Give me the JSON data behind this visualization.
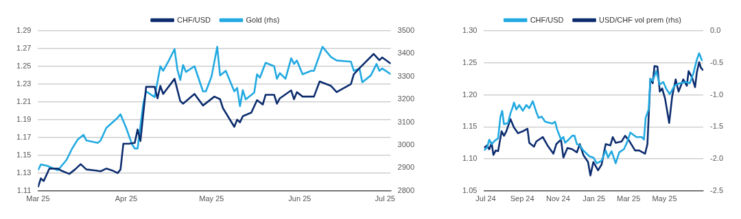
{
  "chart_data": [
    {
      "type": "line",
      "legend": "top",
      "grid": "y",
      "marker": "none",
      "line_style": "solid",
      "xlim": [
        "2025-03-01",
        "2025-07-03"
      ],
      "xticks": [
        {
          "value": "2025-03-01",
          "label": "Mar 25"
        },
        {
          "value": "2025-04-01",
          "label": "Apr 25"
        },
        {
          "value": "2025-05-01",
          "label": "May 25"
        },
        {
          "value": "2025-06-01",
          "label": "Jun 25"
        },
        {
          "value": "2025-07-01",
          "label": "Jul 25"
        }
      ],
      "ylim": [
        1.11,
        1.29
      ],
      "yticks": [
        1.11,
        1.13,
        1.15,
        1.17,
        1.19,
        1.21,
        1.23,
        1.25,
        1.27,
        1.29
      ],
      "y2lim": [
        2800,
        3500
      ],
      "y2ticks": [
        2800,
        2900,
        3000,
        3100,
        3200,
        3300,
        3400,
        3500
      ],
      "series": [
        {
          "name": "CHF/USD",
          "color": "#0c2c6e",
          "x": [
            "2025-03-01",
            "2025-03-02",
            "2025-03-03",
            "2025-03-05",
            "2025-03-08",
            "2025-03-09",
            "2025-03-12",
            "2025-03-14",
            "2025-03-16",
            "2025-03-18",
            "2025-03-21",
            "2025-03-23",
            "2025-03-25",
            "2025-03-27",
            "2025-03-29",
            "2025-03-30",
            "2025-03-31",
            "2025-04-02",
            "2025-04-04",
            "2025-04-05",
            "2025-04-06",
            "2025-04-08",
            "2025-04-11",
            "2025-04-12",
            "2025-04-13",
            "2025-04-14",
            "2025-04-18",
            "2025-04-20",
            "2025-04-21",
            "2025-04-25",
            "2025-04-28",
            "2025-05-02",
            "2025-05-04",
            "2025-05-05",
            "2025-05-09",
            "2025-05-10",
            "2025-05-11",
            "2025-05-12",
            "2025-05-15",
            "2025-05-17",
            "2025-05-19",
            "2025-05-20",
            "2025-05-23",
            "2025-05-24",
            "2025-05-25",
            "2025-05-29",
            "2025-05-30",
            "2025-05-31",
            "2025-06-02",
            "2025-06-06",
            "2025-06-08",
            "2025-06-12",
            "2025-06-14",
            "2025-06-15",
            "2025-06-19",
            "2025-06-20",
            "2025-06-22",
            "2025-06-27",
            "2025-06-29",
            "2025-06-30",
            "2025-07-03"
          ],
          "values": [
            1.114,
            1.124,
            1.121,
            1.135,
            1.135,
            1.133,
            1.129,
            1.134,
            1.14,
            1.134,
            1.133,
            1.132,
            1.135,
            1.133,
            1.13,
            1.134,
            1.163,
            1.163,
            1.164,
            1.179,
            1.166,
            1.227,
            1.227,
            1.214,
            1.228,
            1.219,
            1.236,
            1.211,
            1.208,
            1.219,
            1.206,
            1.216,
            1.213,
            1.203,
            1.182,
            1.19,
            1.187,
            1.194,
            1.198,
            1.212,
            1.207,
            1.218,
            1.218,
            1.208,
            1.214,
            1.223,
            1.213,
            1.221,
            1.216,
            1.216,
            1.233,
            1.228,
            1.221,
            1.223,
            1.23,
            1.241,
            1.248,
            1.264,
            1.257,
            1.26,
            1.253
          ]
        },
        {
          "name": "Gold (rhs)",
          "color": "#21a9e1",
          "axis": "y2",
          "x": [
            "2025-03-01",
            "2025-03-02",
            "2025-03-04",
            "2025-03-08",
            "2025-03-11",
            "2025-03-13",
            "2025-03-15",
            "2025-03-17",
            "2025-03-18",
            "2025-03-22",
            "2025-03-23",
            "2025-03-25",
            "2025-03-29",
            "2025-03-30",
            "2025-04-01",
            "2025-04-03",
            "2025-04-04",
            "2025-04-05",
            "2025-04-07",
            "2025-04-08",
            "2025-04-11",
            "2025-04-13",
            "2025-04-14",
            "2025-04-16",
            "2025-04-18",
            "2025-04-19",
            "2025-04-20",
            "2025-04-21",
            "2025-04-22",
            "2025-04-25",
            "2025-04-28",
            "2025-04-29",
            "2025-05-01",
            "2025-05-03",
            "2025-05-04",
            "2025-05-06",
            "2025-05-09",
            "2025-05-10",
            "2025-05-11",
            "2025-05-12",
            "2025-05-13",
            "2025-05-16",
            "2025-05-17",
            "2025-05-18",
            "2025-05-20",
            "2025-05-23",
            "2025-05-24",
            "2025-05-25",
            "2025-05-27",
            "2025-05-29",
            "2025-05-30",
            "2025-05-31",
            "2025-06-02",
            "2025-06-05",
            "2025-06-06",
            "2025-06-09",
            "2025-06-12",
            "2025-06-14",
            "2025-06-19",
            "2025-06-20",
            "2025-06-22",
            "2025-06-23",
            "2025-06-26",
            "2025-06-28",
            "2025-06-29",
            "2025-06-30",
            "2025-07-03"
          ],
          "values": [
            2890,
            2915,
            2910,
            2890,
            2935,
            2985,
            3025,
            3045,
            3020,
            3010,
            3020,
            3075,
            3120,
            3135,
            3075,
            3005,
            2985,
            2985,
            3180,
            3235,
            3210,
            3345,
            3325,
            3370,
            3420,
            3330,
            3285,
            3350,
            3320,
            3345,
            3235,
            3235,
            3300,
            3430,
            3305,
            3325,
            3235,
            3250,
            3170,
            3240,
            3200,
            3230,
            3310,
            3295,
            3360,
            3345,
            3290,
            3315,
            3290,
            3380,
            3355,
            3370,
            3310,
            3325,
            3325,
            3430,
            3385,
            3370,
            3365,
            3325,
            3335,
            3275,
            3305,
            3355,
            3325,
            3335,
            3310
          ]
        }
      ]
    },
    {
      "type": "line",
      "legend": "top",
      "grid": "y",
      "marker": "none",
      "line_style": "solid",
      "xlim": [
        "2024-06-28",
        "2025-07-06"
      ],
      "xticks": [
        {
          "value": "2024-07-01",
          "label": "Jul 24"
        },
        {
          "value": "2024-09-01",
          "label": "Sep 24"
        },
        {
          "value": "2024-11-01",
          "label": "Nov 24"
        },
        {
          "value": "2025-01-01",
          "label": "Jan 25"
        },
        {
          "value": "2025-03-01",
          "label": "Mar 25"
        },
        {
          "value": "2025-05-01",
          "label": "May 25"
        }
      ],
      "ylim": [
        1.05,
        1.3
      ],
      "yticks": [
        1.05,
        {
          "value": 1.1,
          "label": "1.10"
        },
        1.15,
        {
          "value": 1.2,
          "label": "1.20"
        },
        1.25,
        {
          "value": 1.3,
          "label": "1.30"
        }
      ],
      "y2lim": [
        -2.5,
        0
      ],
      "y2ticks": [
        -2.5,
        {
          "value": -2,
          "label": "-2.0"
        },
        -1.5,
        {
          "value": -1,
          "label": "-1.0"
        },
        -0.5,
        {
          "value": 0,
          "label": "0.0"
        }
      ],
      "series": [
        {
          "name": "CHF/USD",
          "color": "#21a9e1",
          "x": [
            "2024-06-28",
            "2024-07-03",
            "2024-07-07",
            "2024-07-11",
            "2024-07-16",
            "2024-07-22",
            "2024-07-26",
            "2024-07-29",
            "2024-08-01",
            "2024-08-08",
            "2024-08-12",
            "2024-08-16",
            "2024-08-18",
            "2024-08-22",
            "2024-08-27",
            "2024-09-02",
            "2024-09-08",
            "2024-09-13",
            "2024-09-19",
            "2024-09-25",
            "2024-09-29",
            "2024-10-04",
            "2024-10-10",
            "2024-10-22",
            "2024-10-27",
            "2024-10-30",
            "2024-11-06",
            "2024-11-10",
            "2024-11-13",
            "2024-11-19",
            "2024-11-25",
            "2024-11-29",
            "2024-12-03",
            "2024-12-08",
            "2024-12-14",
            "2024-12-24",
            "2024-12-31",
            "2025-01-06",
            "2025-01-14",
            "2025-01-21",
            "2025-01-25",
            "2025-01-31",
            "2025-02-07",
            "2025-02-13",
            "2025-02-21",
            "2025-02-26",
            "2025-03-04",
            "2025-03-14",
            "2025-03-23",
            "2025-03-27",
            "2025-03-30",
            "2025-04-04",
            "2025-04-07",
            "2025-04-11",
            "2025-04-17",
            "2025-04-23",
            "2025-04-29",
            "2025-05-04",
            "2025-05-10",
            "2025-05-18",
            "2025-05-27",
            "2025-06-06",
            "2025-06-13",
            "2025-06-19",
            "2025-06-25",
            "2025-06-29",
            "2025-07-04"
          ],
          "values": [
            1.113,
            1.117,
            1.13,
            1.123,
            1.128,
            1.132,
            1.166,
            1.175,
            1.154,
            1.156,
            1.171,
            1.181,
            1.188,
            1.177,
            1.184,
            1.175,
            1.184,
            1.179,
            1.19,
            1.173,
            1.164,
            1.166,
            1.158,
            1.155,
            1.158,
            1.147,
            1.13,
            1.134,
            1.125,
            1.13,
            1.136,
            1.136,
            1.123,
            1.121,
            1.113,
            1.104,
            1.102,
            1.093,
            1.097,
            1.113,
            1.102,
            1.112,
            1.093,
            1.11,
            1.115,
            1.125,
            1.141,
            1.134,
            1.134,
            1.13,
            1.164,
            1.177,
            1.225,
            1.222,
            1.237,
            1.216,
            1.22,
            1.209,
            1.201,
            1.214,
            1.218,
            1.22,
            1.218,
            1.233,
            1.255,
            1.265,
            1.253
          ]
        },
        {
          "name": "USD/CHF vol prem (rhs)",
          "color": "#0c2c6e",
          "axis": "y2",
          "x": [
            "2024-06-28",
            "2024-07-03",
            "2024-07-07",
            "2024-07-11",
            "2024-07-14",
            "2024-07-18",
            "2024-07-22",
            "2024-07-28",
            "2024-08-01",
            "2024-08-05",
            "2024-08-12",
            "2024-08-18",
            "2024-08-25",
            "2024-09-02",
            "2024-09-10",
            "2024-09-13",
            "2024-09-21",
            "2024-09-25",
            "2024-10-06",
            "2024-10-14",
            "2024-10-24",
            "2024-10-29",
            "2024-11-06",
            "2024-11-10",
            "2024-11-17",
            "2024-11-25",
            "2024-12-03",
            "2024-12-08",
            "2024-12-14",
            "2024-12-22",
            "2024-12-26",
            "2024-12-31",
            "2025-01-08",
            "2025-01-14",
            "2025-01-21",
            "2025-01-29",
            "2025-02-02",
            "2025-02-07",
            "2025-02-17",
            "2025-02-23",
            "2025-03-02",
            "2025-03-12",
            "2025-03-19",
            "2025-03-29",
            "2025-04-02",
            "2025-04-07",
            "2025-04-11",
            "2025-04-14",
            "2025-04-19",
            "2025-04-23",
            "2025-04-27",
            "2025-05-02",
            "2025-05-09",
            "2025-05-14",
            "2025-05-20",
            "2025-05-25",
            "2025-06-02",
            "2025-06-08",
            "2025-06-11",
            "2025-06-17",
            "2025-06-22",
            "2025-06-25",
            "2025-06-29",
            "2025-07-02",
            "2025-07-06"
          ],
          "values": [
            -1.83,
            -1.79,
            -1.85,
            -1.75,
            -1.94,
            -1.87,
            -1.88,
            -1.57,
            -1.64,
            -1.57,
            -1.38,
            -1.51,
            -1.6,
            -1.57,
            -1.53,
            -1.75,
            -1.81,
            -1.73,
            -1.66,
            -1.79,
            -1.92,
            -1.77,
            -1.7,
            -1.98,
            -1.83,
            -1.85,
            -1.9,
            -1.77,
            -1.94,
            -2.05,
            -2.26,
            -2.05,
            -2.18,
            -2.09,
            -1.77,
            -1.79,
            -1.66,
            -1.75,
            -1.73,
            -1.64,
            -1.72,
            -1.87,
            -1.87,
            -1.92,
            -1.77,
            -0.75,
            -0.82,
            -0.55,
            -0.56,
            -0.95,
            -0.9,
            -1.06,
            -1.44,
            -1.03,
            -0.76,
            -0.95,
            -0.76,
            -0.86,
            -0.63,
            -0.73,
            -0.88,
            -0.65,
            -0.49,
            -0.58,
            -0.62
          ]
        }
      ]
    }
  ]
}
